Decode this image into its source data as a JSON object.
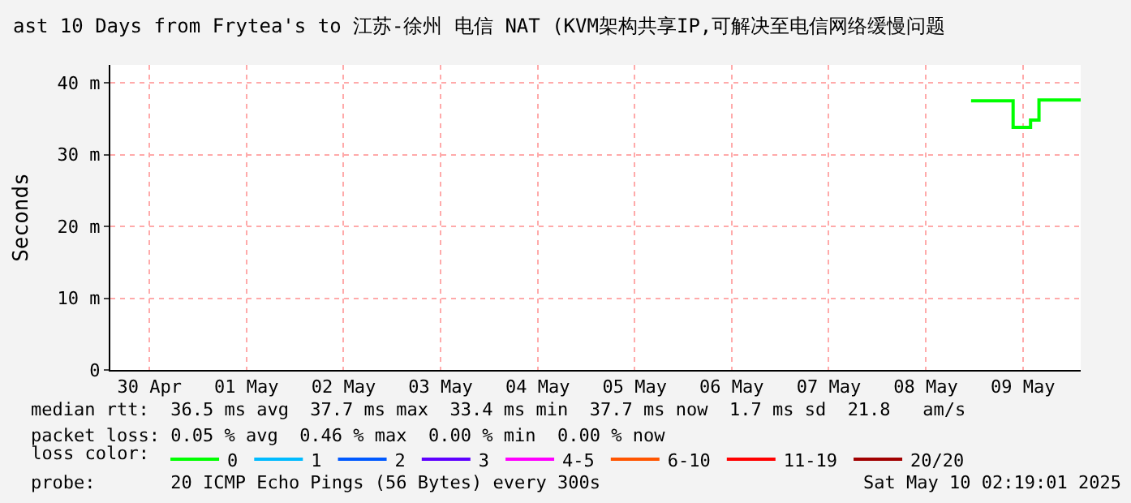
{
  "chart_data": {
    "type": "step",
    "title": "ast 10 Days from Frytea's to 江苏-徐州 电信 NAT (KVM架构共享IP,可解决至电信网络缓慢问题",
    "ylabel": "Seconds",
    "x": [
      "2025-05-08T23:12",
      "2025-05-09T09:36",
      "2025-05-09T13:55",
      "2025-05-09T16:00",
      "2025-05-10T02:19"
    ],
    "series": [
      {
        "name": "0",
        "color": "#00ff00",
        "values": [
          37.5,
          33.8,
          34.8,
          37.6,
          37.7
        ]
      },
      {
        "name": "1",
        "color": "#00bbff",
        "values": [
          null,
          null,
          null,
          null,
          null
        ]
      },
      {
        "name": "2",
        "color": "#0059ff",
        "values": [
          null,
          null,
          null,
          null,
          null
        ]
      },
      {
        "name": "3",
        "color": "#5e00ff",
        "values": [
          null,
          null,
          null,
          null,
          null
        ]
      },
      {
        "name": "4-5",
        "color": "#ff00ff",
        "values": [
          null,
          null,
          null,
          null,
          null
        ]
      },
      {
        "name": "6-10",
        "color": "#ff5500",
        "values": [
          null,
          null,
          null,
          null,
          null
        ]
      },
      {
        "name": "11-19",
        "color": "#ff0000",
        "values": [
          null,
          null,
          null,
          null,
          null
        ]
      },
      {
        "name": "20/20",
        "color": "#a10000",
        "values": [
          null,
          null,
          null,
          null,
          null
        ]
      }
    ],
    "legend_title": "loss color:",
    "legend": "bottom",
    "xlim": [
      "2025-04-30T02:19",
      "2025-05-10T02:19"
    ],
    "xticks": [
      {
        "value": "2025-04-30T12:00",
        "label": "30 Apr"
      },
      {
        "value": "2025-05-01T12:00",
        "label": "01 May"
      },
      {
        "value": "2025-05-02T12:00",
        "label": "02 May"
      },
      {
        "value": "2025-05-03T12:00",
        "label": "03 May"
      },
      {
        "value": "2025-05-04T12:00",
        "label": "04 May"
      },
      {
        "value": "2025-05-05T12:00",
        "label": "05 May"
      },
      {
        "value": "2025-05-06T12:00",
        "label": "06 May"
      },
      {
        "value": "2025-05-07T12:00",
        "label": "07 May"
      },
      {
        "value": "2025-05-08T12:00",
        "label": "08 May"
      },
      {
        "value": "2025-05-09T12:00",
        "label": "09 May"
      }
    ],
    "ylim": [
      0,
      42.5
    ],
    "yticks": [
      0,
      {
        "value": 10,
        "label": "10 m"
      },
      {
        "value": 20,
        "label": "20 m"
      },
      {
        "value": 30,
        "label": "30 m"
      },
      {
        "value": 40,
        "label": "40 m"
      }
    ],
    "grid": true,
    "annotations": [
      "median rtt:  36.5 ms avg  37.7 ms max  33.4 ms min  37.7 ms now  1.7 ms sd  21.8   am/s",
      "packet loss: 0.05 % avg  0.46 % max  0.00 % min  0.00 % now",
      "probe:       20 ICMP Echo Pings (56 Bytes) every 300s",
      "Sat May 10 02:19:01 2025"
    ]
  }
}
